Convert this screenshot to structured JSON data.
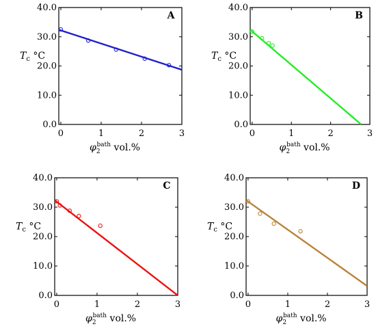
{
  "chart_data": [
    {
      "type": "scatter",
      "panel_label": "A",
      "xlabel": {
        "symbol": "φ",
        "sub": "2",
        "sup": "bath",
        "unit": "vol.%"
      },
      "ylabel": {
        "symbol": "T",
        "sub": "c",
        "unit": "°C"
      },
      "xlim": [
        -0.05,
        3.0
      ],
      "ylim": [
        0.0,
        40.0
      ],
      "x_ticks": [
        "0",
        "1",
        "2",
        "3"
      ],
      "y_ticks": [
        "0.0",
        "10.0",
        "20.0",
        "30.0",
        "40.0"
      ],
      "color": "#1f1fd0",
      "points": [
        {
          "x": 0.0,
          "y": 32.5
        },
        {
          "x": 0.68,
          "y": 28.7
        },
        {
          "x": 1.37,
          "y": 25.6
        },
        {
          "x": 2.08,
          "y": 22.5
        },
        {
          "x": 2.68,
          "y": 20.3
        }
      ],
      "fit_line": [
        {
          "x": -0.05,
          "y": 32.4
        },
        {
          "x": 3.0,
          "y": 18.7
        }
      ]
    },
    {
      "type": "scatter",
      "panel_label": "B",
      "xlabel": {
        "symbol": "φ",
        "sub": "2",
        "sup": "bath",
        "unit": "vol.%"
      },
      "ylabel": {
        "symbol": "T",
        "sub": "c",
        "unit": "°C"
      },
      "xlim": [
        -0.05,
        3.0
      ],
      "ylim": [
        0.0,
        40.0
      ],
      "x_ticks": [
        "0",
        "1",
        "2",
        "3"
      ],
      "y_ticks": [
        "0.0",
        "10.0",
        "20.0",
        "30.0",
        "40.0"
      ],
      "color": "#22ee22",
      "points": [
        {
          "x": 0.0,
          "y": 31.8
        },
        {
          "x": 0.25,
          "y": 29.5
        },
        {
          "x": 0.42,
          "y": 27.8
        },
        {
          "x": 0.52,
          "y": 27.0
        }
      ],
      "fit_line": [
        {
          "x": -0.05,
          "y": 32.4
        },
        {
          "x": 2.78,
          "y": 0.0
        }
      ]
    },
    {
      "type": "scatter",
      "panel_label": "C",
      "xlabel": {
        "symbol": "φ",
        "sub": "2",
        "sup": "bath",
        "unit": "vol.%"
      },
      "ylabel": {
        "symbol": "T",
        "sub": "c",
        "unit": "°C"
      },
      "xlim": [
        -0.05,
        3.0
      ],
      "ylim": [
        0.0,
        40.0
      ],
      "x_ticks": [
        "0",
        "1",
        "2",
        "3"
      ],
      "y_ticks": [
        "0.0",
        "10.0",
        "20.0",
        "30.0",
        "40.0"
      ],
      "color": "#ee1111",
      "points": [
        {
          "x": 0.0,
          "y": 32.0
        },
        {
          "x": 0.08,
          "y": 30.6
        },
        {
          "x": 0.32,
          "y": 28.8
        },
        {
          "x": 0.55,
          "y": 27.0
        },
        {
          "x": 1.08,
          "y": 23.7
        }
      ],
      "fit_line": [
        {
          "x": -0.05,
          "y": 32.4
        },
        {
          "x": 3.0,
          "y": 0.0
        }
      ]
    },
    {
      "type": "scatter",
      "panel_label": "D",
      "xlabel": {
        "symbol": "φ",
        "sub": "2",
        "sup": "bath",
        "unit": "vol.%"
      },
      "ylabel": {
        "symbol": "T",
        "sub": "c",
        "unit": "°C"
      },
      "xlim": [
        -0.05,
        3.0
      ],
      "ylim": [
        0.0,
        40.0
      ],
      "x_ticks": [
        "0",
        "1",
        "2",
        "3"
      ],
      "y_ticks": [
        "0.0",
        "10.0",
        "20.0",
        "30.0",
        "40.0"
      ],
      "color": "#b8823a",
      "points": [
        {
          "x": 0.0,
          "y": 32.0
        },
        {
          "x": 0.3,
          "y": 27.8
        },
        {
          "x": 0.65,
          "y": 24.4
        },
        {
          "x": 1.32,
          "y": 21.8
        }
      ],
      "fit_line": [
        {
          "x": -0.05,
          "y": 32.4
        },
        {
          "x": 3.0,
          "y": 3.2
        }
      ]
    }
  ]
}
